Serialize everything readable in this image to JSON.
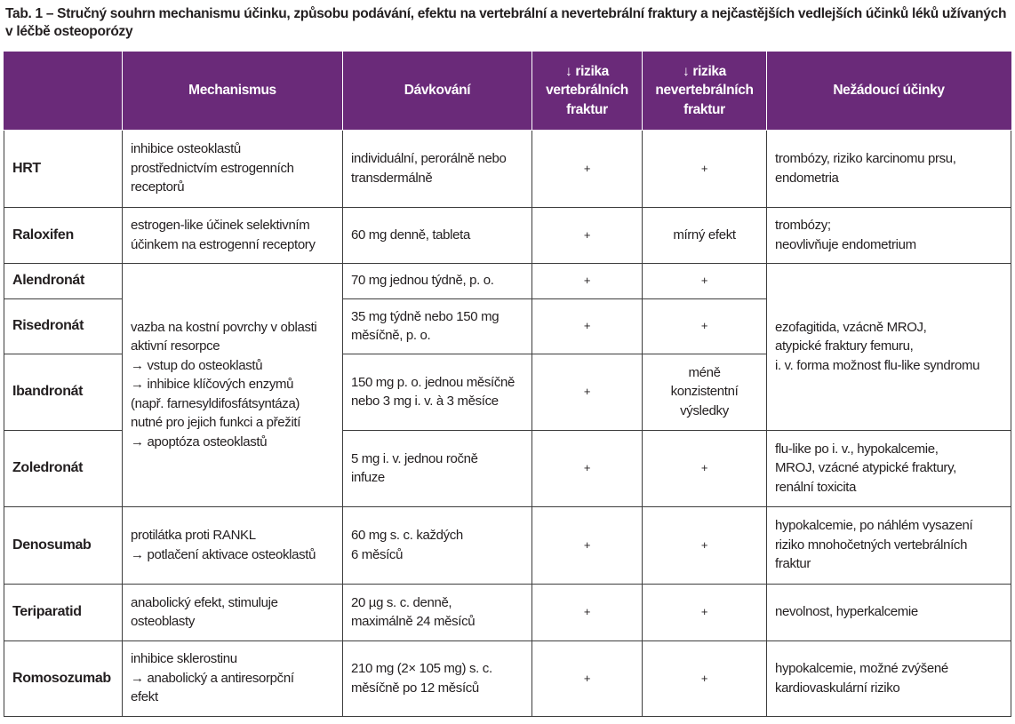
{
  "caption": "Tab. 1 – Stručný souhrn mechanismu účinku, způsobu podávání, efektu na vertebrální a nevertebrální fraktury a nejčastějších vedlejších účinků léků užívaných v léčbě osteoporózy",
  "headers": {
    "drug": "",
    "mechanism": "Mechanismus",
    "dosage": "Dávkování",
    "vertebral": [
      "↓ rizika",
      "vertebrálních",
      "fraktur"
    ],
    "nonvertebral": [
      "↓ rizika",
      "nevertebrálních",
      "fraktur"
    ],
    "adverse": "Nežádoucí účinky"
  },
  "rows": [
    {
      "drug": "HRT",
      "mechanism": [
        "inhibice osteoklastů",
        "prostřednictvím estrogenních",
        "receptorů"
      ],
      "dosage": [
        "individuální, perorálně nebo",
        "transdermálně"
      ],
      "vertebral": "+",
      "nonvertebral": "+",
      "adverse": [
        "trombózy, riziko karcinomu prsu,",
        "endometria"
      ]
    },
    {
      "drug": "Raloxifen",
      "mechanism": [
        "estrogen-like účinek selektivním",
        "účinkem na estrogenní receptory"
      ],
      "dosage": [
        "60 mg denně, tableta"
      ],
      "vertebral": "+",
      "nonvertebral": [
        "mírný efekt"
      ],
      "adverse": [
        "trombózy;",
        "neovlivňuje endometrium"
      ]
    },
    {
      "drug": "Alendronát",
      "dosage": [
        "70 mg jednou týdně, p. o."
      ],
      "vertebral": "+",
      "nonvertebral": "+"
    },
    {
      "drug": "Risedronát",
      "dosage": [
        "35 mg týdně nebo 150 mg",
        "měsíčně, p. o."
      ],
      "vertebral": "+",
      "nonvertebral": "+"
    },
    {
      "drug": "Ibandronát",
      "dosage": [
        "150 mg p. o. jednou měsíčně",
        "nebo 3 mg i. v. à 3 měsíce"
      ],
      "vertebral": "+",
      "nonvertebral": [
        "méně",
        "konzistentní",
        "výsledky"
      ]
    },
    {
      "drug": "Zoledronát",
      "dosage": [
        "5 mg i. v. jednou ročně",
        "infuze"
      ],
      "vertebral": "+",
      "nonvertebral": "+",
      "adverse": [
        "flu-like po i. v., hypokalcemie,",
        "MROJ, vzácné atypické fraktury,",
        "renální toxicita"
      ]
    },
    {
      "drug": "Denosumab",
      "mechanism": [
        "protilátka proti RANKL",
        "→ potlačení aktivace osteoklastů"
      ],
      "dosage": [
        "60 mg s. c. každých",
        "6 měsíců"
      ],
      "vertebral": "+",
      "nonvertebral": "+",
      "adverse": [
        "hypokalcemie, po náhlém vysazení",
        "riziko mnohočetných vertebrálních",
        "fraktur"
      ]
    },
    {
      "drug": "Teriparatid",
      "mechanism": [
        "anabolický efekt, stimuluje",
        "osteoblasty"
      ],
      "dosage": [
        "20 µg s. c. denně,",
        "maximálně 24 měsíců"
      ],
      "vertebral": "+",
      "nonvertebral": "+",
      "adverse": [
        "nevolnost, hyperkalcemie"
      ]
    },
    {
      "drug": "Romosozumab",
      "mechanism": [
        "inhibice sklerostinu",
        "→ anabolický a antiresorpční",
        "efekt"
      ],
      "dosage": [
        "210 mg (2× 105 mg) s. c.",
        "měsíčně po 12 měsíců"
      ],
      "vertebral": "+",
      "nonvertebral": "+",
      "adverse": [
        "hypokalcemie, možné zvýšené",
        "kardiovaskulární riziko"
      ]
    }
  ],
  "bisphosphonates_mechanism": [
    "vazba na kostní povrchy v oblasti",
    "aktivní resorpce",
    "→ vstup do osteoklastů",
    "→ inhibice klíčových enzymů",
    "(např. farnesyldifosfátsyntáza)",
    "nutné pro jejich funkci a přežití",
    "→ apoptóza osteoklastů"
  ],
  "bisphosphonates_adverse": [
    "ezofagitida, vzácně MROJ,",
    "atypické fraktury femuru,",
    "i. v. forma možnost flu-like syndromu"
  ]
}
